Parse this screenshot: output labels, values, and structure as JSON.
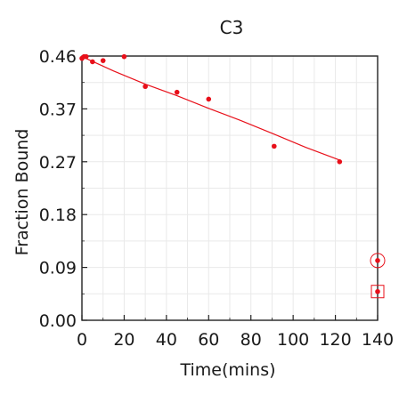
{
  "chart_data": {
    "type": "scatter",
    "title": "C3",
    "xlabel": "Time(mins)",
    "ylabel": "Fraction Bound",
    "xlim": [
      0,
      140
    ],
    "ylim": [
      0.0,
      0.46
    ],
    "x_ticks": [
      "0",
      "20",
      "40",
      "60",
      "80",
      "100",
      "120",
      "140"
    ],
    "y_ticks": [
      "0.00",
      "0.09",
      "0.18",
      "0.27",
      "0.37",
      "0.46"
    ],
    "grid": true,
    "colors": {
      "data": "#e8101a",
      "axis": "#222222",
      "grid": "#e9e9e9"
    },
    "series": [
      {
        "points": [
          {
            "x": 0,
            "y": 0.456
          },
          {
            "x": 1,
            "y": 0.459
          },
          {
            "x": 2,
            "y": 0.459
          },
          {
            "x": 5,
            "y": 0.45
          },
          {
            "x": 10,
            "y": 0.452
          },
          {
            "x": 20,
            "y": 0.459
          },
          {
            "x": 30,
            "y": 0.407
          },
          {
            "x": 45,
            "y": 0.397
          },
          {
            "x": 60,
            "y": 0.385
          },
          {
            "x": 91,
            "y": 0.303
          },
          {
            "x": 122,
            "y": 0.276
          }
        ],
        "fit": [
          {
            "x": 0,
            "y": 0.459
          },
          {
            "x": 15,
            "y": 0.434
          },
          {
            "x": 30,
            "y": 0.411
          },
          {
            "x": 45,
            "y": 0.391
          },
          {
            "x": 60,
            "y": 0.369
          },
          {
            "x": 75,
            "y": 0.348
          },
          {
            "x": 91,
            "y": 0.324
          },
          {
            "x": 106,
            "y": 0.301
          },
          {
            "x": 122,
            "y": 0.279
          }
        ]
      }
    ],
    "annotations": [
      {
        "marker": "circle",
        "x": 140,
        "y": 0.104
      },
      {
        "marker": "square",
        "x": 140,
        "y": 0.05
      }
    ]
  }
}
